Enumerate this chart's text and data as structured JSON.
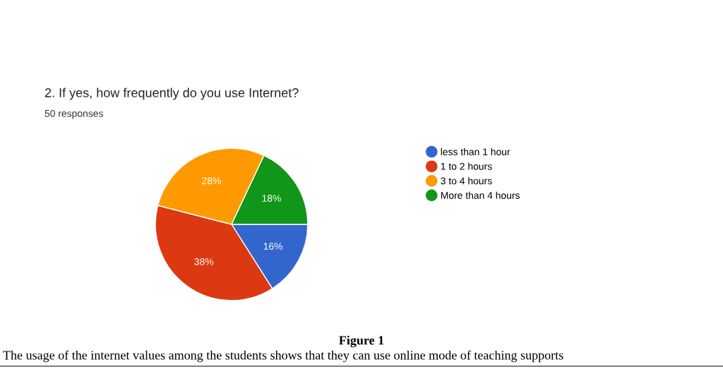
{
  "chart_data": {
    "type": "pie",
    "title": "2. If yes, how frequently do you use Internet?",
    "subtitle": "50 responses",
    "categories": [
      "less than 1 hour",
      "1 to 2 hours",
      "3 to 4 hours",
      "More than 4 hours"
    ],
    "values": [
      16,
      38,
      28,
      18
    ],
    "value_labels": [
      "16%",
      "38%",
      "28%",
      "18%"
    ],
    "colors": [
      "#3366cc",
      "#dc3912",
      "#ff9900",
      "#109618"
    ],
    "legend": "right",
    "annotations": [
      "Figure 1",
      "The usage of the internet values among the students shows that they can use online mode of teaching supports"
    ]
  }
}
